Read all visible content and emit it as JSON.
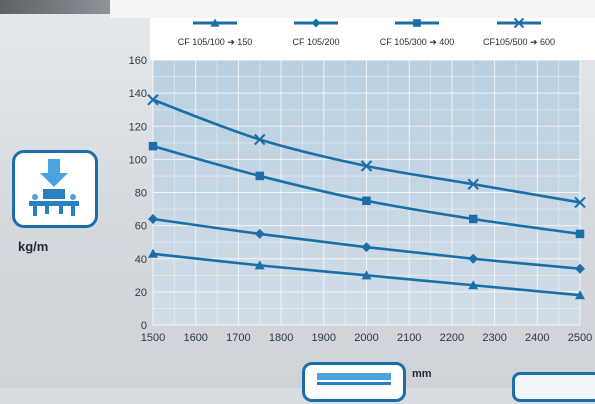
{
  "chart_data": {
    "type": "line",
    "x": [
      1500,
      1750,
      2000,
      2250,
      2500
    ],
    "xticks": [
      1500,
      1600,
      1700,
      1800,
      1900,
      2000,
      2100,
      2200,
      2300,
      2400,
      2500
    ],
    "yticks": [
      0,
      20,
      40,
      60,
      80,
      100,
      120,
      140,
      160
    ],
    "xlim": [
      1500,
      2500
    ],
    "ylim": [
      0,
      160
    ],
    "grid": true,
    "legend_position": "top",
    "series": [
      {
        "name": "CF 105/100 ➔ 150",
        "marker": "triangle",
        "values": [
          43,
          36,
          30,
          24,
          18
        ]
      },
      {
        "name": "CF 105/200",
        "marker": "diamond",
        "values": [
          64,
          55,
          47,
          40,
          34
        ]
      },
      {
        "name": "CF 105/300 ➔ 400",
        "marker": "square",
        "values": [
          108,
          90,
          75,
          64,
          55
        ]
      },
      {
        "name": "CF105/500 ➔ 600",
        "marker": "x",
        "values": [
          136,
          112,
          96,
          85,
          74
        ]
      }
    ],
    "xlabel": "mm",
    "ylabel": "kg/m",
    "line_color": "#1a6fa8"
  },
  "icons": {
    "ylabel_icon": "load-on-rack-icon",
    "xlabel_icon": "width-measure-icon"
  }
}
